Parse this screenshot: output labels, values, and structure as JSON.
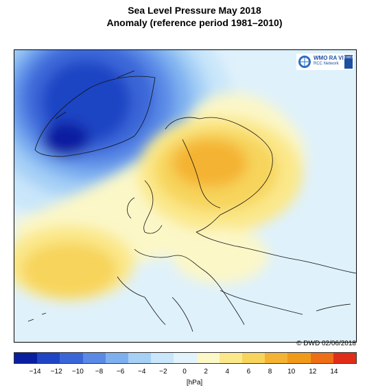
{
  "title_line1": "Sea Level Pressure May 2018",
  "title_line2": "Anomaly (reference period 1981–2010)",
  "copyright": "© DWD 02/06/2018",
  "logo": {
    "line1": "WMO RA VI",
    "line2": "RCC Network",
    "badge": "DWD"
  },
  "colorbar": {
    "colors": [
      "#0a1fa0",
      "#1f44c4",
      "#3a66d8",
      "#5a8ae6",
      "#7eb0f0",
      "#a6d0f6",
      "#c9e6fa",
      "#e3f3fb",
      "#fbf7c7",
      "#fbe88a",
      "#f7d45b",
      "#f4b333",
      "#f19a1a",
      "#ee6e16",
      "#e02d17"
    ],
    "ticks": [
      "−14",
      "−12",
      "−10",
      "−8",
      "−6",
      "−4",
      "−2",
      "0",
      "2",
      "4",
      "6",
      "8",
      "10",
      "12",
      "14"
    ],
    "unit": "[hPa]"
  }
}
